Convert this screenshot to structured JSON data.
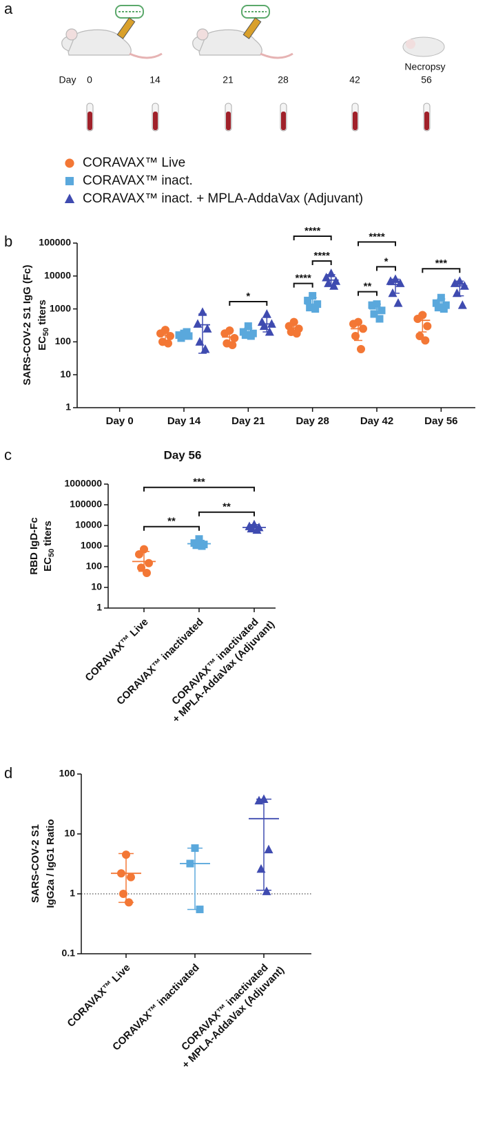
{
  "panel_labels": [
    "a",
    "b",
    "c",
    "d"
  ],
  "timeline": {
    "day_label": "Day",
    "days": [
      "0",
      "14",
      "21",
      "28",
      "42",
      "56"
    ],
    "necropsy": "Necropsy"
  },
  "chart_data": [
    {
      "type": "scatter",
      "log": true,
      "ylabel": {
        "line1": "SARS-COV-2 S1 IgG (Fc)",
        "line2": [
          "EC",
          "50",
          "titers"
        ]
      },
      "categories": [
        "Day 0",
        "Day 14",
        "Day 21",
        "Day 28",
        "Day 42",
        "Day 56"
      ],
      "ylim": [
        1,
        100000
      ],
      "yticks": [
        1,
        10,
        100,
        1000,
        10000,
        100000
      ],
      "series": [
        {
          "name": "CORAVAX™ Live",
          "color": "#f37735",
          "marker": "circle",
          "points": [
            [],
            [
              230,
              180,
              150,
              100,
              90
            ],
            [
              220,
              180,
              130,
              90,
              80
            ],
            [
              400,
              300,
              250,
              200,
              180
            ],
            [
              400,
              350,
              250,
              150,
              60
            ],
            [
              650,
              500,
              300,
              150,
              110
            ]
          ],
          "mean": [
            null,
            160,
            140,
            260,
            250,
            450
          ],
          "range": [
            null,
            [
              100,
              240
            ],
            [
              90,
              220
            ],
            [
              180,
              380
            ],
            [
              110,
              380
            ],
            [
              200,
              700
            ]
          ]
        },
        {
          "name": "CORAVAX™ inact.",
          "color": "#5aa8dc",
          "marker": "square",
          "points": [
            [],
            [
              180,
              160,
              150,
              130,
              200
            ],
            [
              300,
              200,
              180,
              160,
              150
            ],
            [
              2500,
              1800,
              1400,
              1100,
              1000
            ],
            [
              1400,
              1300,
              900,
              700,
              500
            ],
            [
              2200,
              1500,
              1300,
              1100,
              1000
            ]
          ],
          "mean": [
            null,
            160,
            200,
            1400,
            1000,
            1400
          ],
          "range": [
            null,
            [
              130,
              200
            ],
            [
              150,
              260
            ],
            [
              900,
              2200
            ],
            [
              600,
              1400
            ],
            [
              1000,
              2000
            ]
          ]
        },
        {
          "name": "CORAVAX™ inact. + MPLA-AddaVax (Adjuvant)",
          "color": "#3f4bb0",
          "marker": "triangle",
          "points": [
            [],
            [
              800,
              350,
              250,
              100,
              60
            ],
            [
              700,
              400,
              350,
              300,
              200
            ],
            [
              12000,
              9000,
              7000,
              6000,
              5000
            ],
            [
              8000,
              7000,
              6000,
              3000,
              1500
            ],
            [
              7000,
              6000,
              5000,
              3000,
              1300
            ]
          ],
          "mean": [
            null,
            330,
            350,
            7500,
            5500,
            5000
          ],
          "range": [
            null,
            [
              45,
              700
            ],
            [
              200,
              550
            ],
            [
              5000,
              11000
            ],
            [
              3000,
              8000
            ],
            [
              2500,
              7000
            ]
          ]
        }
      ],
      "comparisons": [
        {
          "category": 2,
          "groups": [
            0,
            2
          ],
          "label": "*"
        },
        {
          "category": 3,
          "groups": [
            0,
            1
          ],
          "label": "****"
        },
        {
          "category": 3,
          "groups": [
            1,
            2
          ],
          "label": "****"
        },
        {
          "category": 3,
          "groups": [
            0,
            2
          ],
          "label": "****"
        },
        {
          "category": 4,
          "groups": [
            0,
            1
          ],
          "label": "**"
        },
        {
          "category": 4,
          "groups": [
            1,
            2
          ],
          "label": "*"
        },
        {
          "category": 4,
          "groups": [
            0,
            2
          ],
          "label": "****"
        },
        {
          "category": 5,
          "groups": [
            0,
            2
          ],
          "label": "***"
        }
      ]
    },
    {
      "type": "scatter",
      "log": true,
      "title": "Day 56",
      "ylabel": {
        "line1": "RBD IgD-Fc",
        "line2": [
          "EC",
          "50",
          "titers"
        ]
      },
      "categories": [
        [
          "CORAVAX™ Live"
        ],
        [
          "CORAVAX™ inactivated"
        ],
        [
          "CORAVAX™ inactivated",
          "+ MPLA-AddaVax (Adjuvant)"
        ]
      ],
      "ylim": [
        1,
        1000000
      ],
      "yticks": [
        1,
        10,
        100,
        1000,
        10000,
        100000,
        1000000
      ],
      "colors": [
        "#f37735",
        "#5aa8dc",
        "#3f4bb0"
      ],
      "markers": [
        "circle",
        "square",
        "triangle"
      ],
      "points": [
        [
          700,
          400,
          150,
          90,
          50
        ],
        [
          2200,
          1400,
          1200,
          1100,
          1000
        ],
        [
          11000,
          9000,
          8000,
          7000,
          6000
        ]
      ],
      "mean": [
        180,
        1300,
        8000
      ],
      "range": [
        [
          60,
          550
        ],
        [
          1000,
          1900
        ],
        [
          6000,
          11000
        ]
      ],
      "comparisons": [
        {
          "groups": [
            0,
            1
          ],
          "label": "**"
        },
        {
          "groups": [
            1,
            2
          ],
          "label": "**"
        },
        {
          "groups": [
            0,
            2
          ],
          "label": "***"
        }
      ]
    },
    {
      "type": "scatter",
      "log": true,
      "ylabel": {
        "lines": [
          "SARS-COV-2 S1",
          "IgG2a / IgG1 Ratio"
        ]
      },
      "categories": [
        [
          "CORAVAX™ Live"
        ],
        [
          "CORAVAX™ inactivated"
        ],
        [
          "CORAVAX™ inactivated",
          "+ MPLA-AddaVax (Adjuvant)"
        ]
      ],
      "ylim": [
        0.1,
        100
      ],
      "yticks": [
        0.1,
        1,
        10,
        100
      ],
      "reference_line": 1,
      "colors": [
        "#f37735",
        "#5aa8dc",
        "#3f4bb0"
      ],
      "markers": [
        "circle",
        "square",
        "triangle"
      ],
      "points": [
        [
          4.5,
          2.2,
          1.9,
          1.0,
          0.72
        ],
        [
          5.8,
          3.2,
          0.55
        ],
        [
          38,
          36,
          5.5,
          2.6,
          1.1
        ]
      ],
      "mean": [
        2.2,
        3.2,
        18
      ],
      "range": [
        [
          0.72,
          4.7
        ],
        [
          0.55,
          5.8
        ],
        [
          1.15,
          38
        ]
      ]
    }
  ]
}
